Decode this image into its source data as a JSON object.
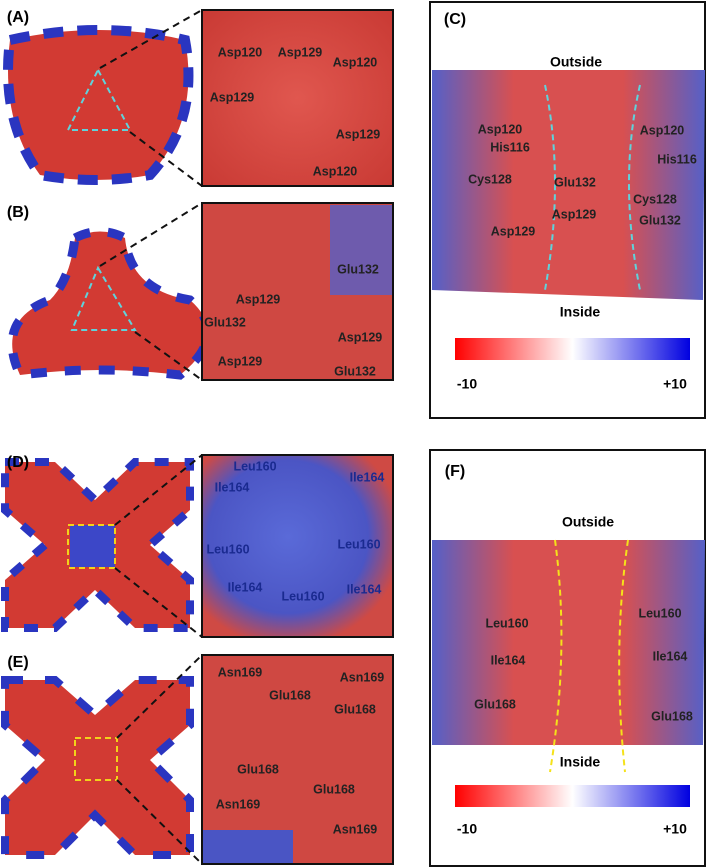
{
  "panels": [
    {
      "label": "(A)",
      "residues": [
        "Asp120",
        "Asp129",
        "Asp120",
        "Asp129",
        "Asp129",
        "Asp120"
      ]
    },
    {
      "label": "(B)",
      "residues": [
        "Glu132",
        "Asp129",
        "Glu132",
        "Asp129",
        "Asp129",
        "Glu132"
      ]
    },
    {
      "label": "(D)",
      "residues": [
        "Leu160",
        "Ile164",
        "Ile164",
        "Leu160",
        "Leu160",
        "Ile164",
        "Leu160",
        "Ile164"
      ]
    },
    {
      "label": "(E)",
      "residues": [
        "Asn169",
        "Asn169",
        "Glu168",
        "Glu168",
        "Glu168",
        "Asn169",
        "Glu168",
        "Asn169"
      ]
    }
  ],
  "side_views": [
    {
      "label": "(C)",
      "top": "Outside",
      "bottom": "Inside",
      "residues": [
        "Asp120",
        "His116",
        "Asp120",
        "His116",
        "Cys128",
        "Glu132",
        "Cys128",
        "Asp129",
        "Glu132",
        "Asp129"
      ],
      "scale_min": "-10",
      "scale_max": "+10"
    },
    {
      "label": "(F)",
      "top": "Outside",
      "bottom": "Inside",
      "residues": [
        "Leu160",
        "Leu160",
        "Ile164",
        "Ile164",
        "Glu168",
        "Glu168"
      ],
      "scale_min": "-10",
      "scale_max": "+10"
    }
  ]
}
